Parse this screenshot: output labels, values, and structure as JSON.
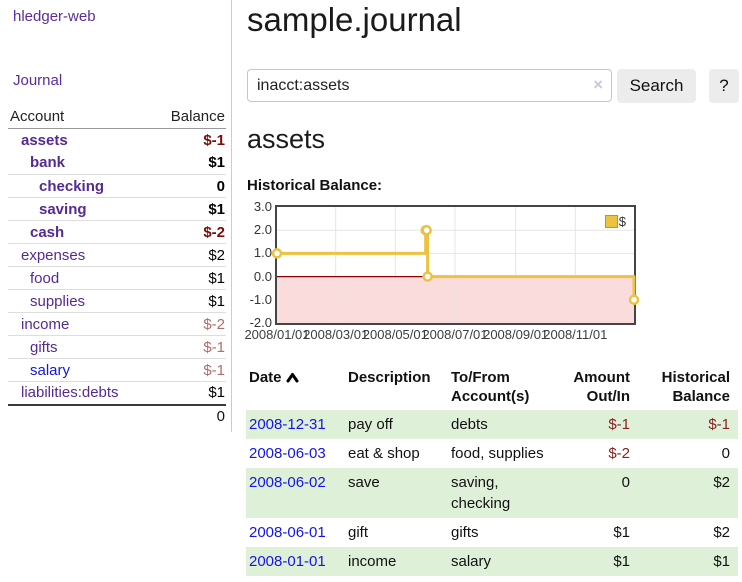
{
  "app": {
    "brand": "hledger-web",
    "nav_journal": "Journal"
  },
  "colors": {
    "link_purple": "#552a94",
    "link_blue": "#1414e8",
    "negative_strong": "#7d0b06",
    "negative_muted": "#b26b6b",
    "table_negative": "#872222",
    "row_stripe_green": "#dff0d8",
    "chart_line_gold": "#edc240",
    "chart_negative_fill": "#fbdcdc",
    "chart_zero_line": "#8b0000",
    "chart_border": "#454545"
  },
  "sidebar": {
    "header": {
      "account": "Account",
      "balance": "Balance"
    },
    "accounts": [
      {
        "name": "assets",
        "indent": 1,
        "bold": true,
        "balance": "$-1",
        "bal_class": "bal-neg-strong"
      },
      {
        "name": "bank",
        "indent": 2,
        "bold": true,
        "balance": "$1",
        "bal_class": "bal-pos-strong"
      },
      {
        "name": "checking",
        "indent": 3,
        "bold": true,
        "balance": "0",
        "bal_class": "bal-pos-strong"
      },
      {
        "name": "saving",
        "indent": 3,
        "bold": true,
        "balance": "$1",
        "bal_class": "bal-pos-strong"
      },
      {
        "name": "cash",
        "indent": 2,
        "bold": true,
        "balance": "$-2",
        "bal_class": "bal-neg-strong"
      },
      {
        "name": "expenses",
        "indent": 1,
        "bold": false,
        "balance": "$2",
        "bal_class": "bal-pos"
      },
      {
        "name": "food",
        "indent": 2,
        "bold": false,
        "balance": "$1",
        "bal_class": "bal-pos"
      },
      {
        "name": "supplies",
        "indent": 2,
        "bold": false,
        "balance": "$1",
        "bal_class": "bal-pos"
      },
      {
        "name": "income",
        "indent": 1,
        "bold": false,
        "balance": "$-2",
        "bal_class": "bal-neg-muted"
      },
      {
        "name": "gifts",
        "indent": 2,
        "bold": false,
        "balance": "$-1",
        "bal_class": "bal-neg-muted"
      },
      {
        "name": "salary",
        "indent": 2,
        "bold": false,
        "balance": "$-1",
        "bal_class": "bal-neg-muted",
        "link_color": "blue"
      },
      {
        "name": "liabilities:debts",
        "indent": 1,
        "bold": false,
        "balance": "$1",
        "bal_class": "bal-pos"
      }
    ],
    "total": "0"
  },
  "header": {
    "title": "sample.journal"
  },
  "search": {
    "value": "inacct:assets",
    "clear_icon": "×",
    "button_label": "Search",
    "help_label": "?"
  },
  "account_page": {
    "heading": "assets",
    "chart_label": "Historical Balance:"
  },
  "chart_data": {
    "type": "line",
    "title": "Historical Balance",
    "step": true,
    "x_start": "2008-01-01",
    "x_range_days": 365,
    "series": [
      {
        "name": "$",
        "color": "#edc240",
        "points": [
          [
            "2008-01-01",
            1
          ],
          [
            "2008-06-01",
            2
          ],
          [
            "2008-06-02",
            2
          ],
          [
            "2008-06-03",
            0
          ],
          [
            "2008-12-31",
            -1
          ]
        ]
      }
    ],
    "x_ticks": [
      {
        "label": "2008/01/01",
        "date": "2008-01-01"
      },
      {
        "label": "2008/03/01",
        "date": "2008-03-01"
      },
      {
        "label": "2008/05/01",
        "date": "2008-05-01"
      },
      {
        "label": "2008/07/01",
        "date": "2008-07-01"
      },
      {
        "label": "2008/09/01",
        "date": "2008-09-01"
      },
      {
        "label": "2008/11/01",
        "date": "2008-11-01"
      }
    ],
    "y_ticks": [
      "3.0",
      "2.0",
      "1.0",
      "0.0",
      "-1.0",
      "-2.0"
    ],
    "ylim": [
      -2,
      3
    ],
    "grid": true,
    "legend": {
      "label": "$",
      "position": "top-right"
    },
    "negative_fill": "#fbdcdc",
    "zero_line": "#8b0000"
  },
  "register": {
    "columns": [
      "Date",
      "Description",
      "To/From Account(s)",
      "Amount Out/In",
      "Historical Balance"
    ],
    "sort_icon_name": "chevron-up",
    "rows": [
      {
        "date": "2008-12-31",
        "description": "pay off",
        "accounts": "debts",
        "amount": "$-1",
        "amount_neg": true,
        "balance": "$-1",
        "balance_neg": true
      },
      {
        "date": "2008-06-03",
        "description": "eat & shop",
        "accounts": "food, supplies",
        "amount": "$-2",
        "amount_neg": true,
        "balance": "0",
        "balance_neg": false
      },
      {
        "date": "2008-06-02",
        "description": "save",
        "accounts": "saving, checking",
        "amount": "0",
        "amount_neg": false,
        "balance": "$2",
        "balance_neg": false
      },
      {
        "date": "2008-06-01",
        "description": "gift",
        "accounts": "gifts",
        "amount": "$1",
        "amount_neg": false,
        "balance": "$2",
        "balance_neg": false
      },
      {
        "date": "2008-01-01",
        "description": "income",
        "accounts": "salary",
        "amount": "$1",
        "amount_neg": false,
        "balance": "$1",
        "balance_neg": false
      }
    ]
  }
}
